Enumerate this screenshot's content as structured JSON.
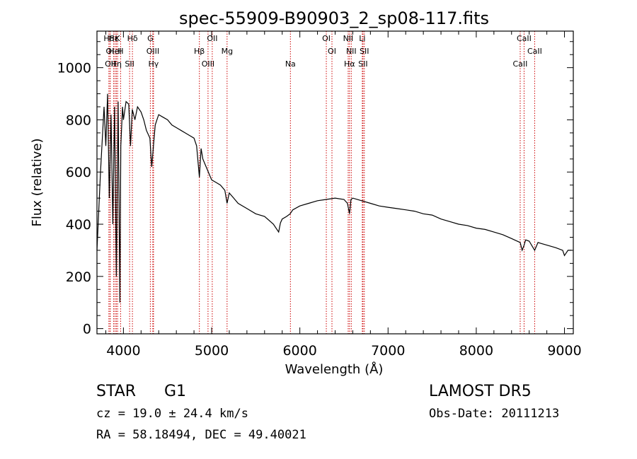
{
  "chart_data": {
    "type": "line",
    "title": "spec-55909-B90903_2_sp08-117.fits",
    "xlabel": "Wavelength (Å)",
    "ylabel": "Flux (relative)",
    "xlim": [
      3700,
      9100
    ],
    "ylim": [
      -20,
      1140
    ],
    "x_ticks": [
      4000,
      5000,
      6000,
      7000,
      8000,
      9000
    ],
    "y_ticks": [
      0,
      200,
      400,
      600,
      800,
      1000
    ],
    "grid": false,
    "line_color": "#000000",
    "marker_color": "#cc0000",
    "series": [
      {
        "x": [
          3700,
          3740,
          3780,
          3800,
          3820,
          3840,
          3860,
          3880,
          3900,
          3920,
          3940,
          3960,
          3970,
          3990,
          4000,
          4030,
          4060,
          4080,
          4100,
          4130,
          4160,
          4200,
          4230,
          4260,
          4300,
          4320,
          4340,
          4360,
          4380,
          4400,
          4450,
          4500,
          4550,
          4600,
          4650,
          4700,
          4750,
          4800,
          4830,
          4861,
          4880,
          4900,
          4950,
          5000,
          5050,
          5100,
          5150,
          5175,
          5200,
          5250,
          5300,
          5400,
          5500,
          5600,
          5700,
          5760,
          5780,
          5800,
          5850,
          5890,
          5920,
          6000,
          6100,
          6200,
          6300,
          6400,
          6500,
          6540,
          6563,
          6580,
          6600,
          6700,
          6800,
          6900,
          7000,
          7100,
          7200,
          7300,
          7400,
          7500,
          7600,
          7700,
          7800,
          7900,
          8000,
          8100,
          8200,
          8300,
          8400,
          8498,
          8520,
          8542,
          8560,
          8600,
          8662,
          8700,
          8800,
          8900,
          8980,
          9000,
          9040,
          9080
        ],
        "y": [
          300,
          600,
          850,
          700,
          900,
          500,
          820,
          400,
          850,
          200,
          870,
          100,
          700,
          850,
          800,
          870,
          860,
          700,
          840,
          800,
          850,
          830,
          800,
          760,
          730,
          620,
          700,
          780,
          800,
          820,
          810,
          800,
          780,
          770,
          760,
          750,
          740,
          730,
          700,
          580,
          690,
          650,
          610,
          570,
          560,
          550,
          530,
          480,
          520,
          500,
          480,
          460,
          440,
          430,
          400,
          370,
          405,
          420,
          430,
          440,
          455,
          470,
          480,
          490,
          495,
          500,
          495,
          480,
          440,
          495,
          500,
          490,
          480,
          470,
          465,
          460,
          455,
          450,
          440,
          435,
          420,
          410,
          400,
          395,
          385,
          380,
          370,
          360,
          345,
          330,
          300,
          320,
          340,
          335,
          300,
          330,
          320,
          310,
          300,
          280,
          300,
          300
        ]
      }
    ],
    "lines": [
      {
        "label": "Hδ",
        "x": 3835
      },
      {
        "label": "OI",
        "x": 3848
      },
      {
        "label": "OII",
        "x": 3850
      },
      {
        "label": "Hε",
        "x": 3889
      },
      {
        "label": "HeI",
        "x": 3905
      },
      {
        "label": "Hη",
        "x": 3920
      },
      {
        "label": "K",
        "x": 3934
      },
      {
        "label": "H",
        "x": 3968
      },
      {
        "label": "SII",
        "x": 4070
      },
      {
        "label": "Hδ",
        "x": 4102
      },
      {
        "label": "OIII",
        "x": 4333
      },
      {
        "label": "Hγ",
        "x": 4341
      },
      {
        "label": "G",
        "x": 4305
      },
      {
        "label": "Hβ",
        "x": 4861
      },
      {
        "label": "OIII",
        "x": 4959
      },
      {
        "label": "OII",
        "x": 5007
      },
      {
        "label": "Mg",
        "x": 5175
      },
      {
        "label": "Na",
        "x": 5893
      },
      {
        "label": "OI",
        "x": 6300
      },
      {
        "label": "OI",
        "x": 6364
      },
      {
        "label": "Hα",
        "x": 6563
      },
      {
        "label": "NII",
        "x": 6548
      },
      {
        "label": "NII",
        "x": 6583
      },
      {
        "label": "SII",
        "x": 6716
      },
      {
        "label": "Li",
        "x": 6708
      },
      {
        "label": "SII",
        "x": 6731
      },
      {
        "label": "CaII",
        "x": 8498
      },
      {
        "label": "CaII",
        "x": 8542
      },
      {
        "label": "CaII",
        "x": 8662
      }
    ]
  },
  "info": {
    "object_class": "STAR",
    "subclass": "G1",
    "cz_line": "cz = 19.0 ± 24.4 km/s",
    "coords_line": "RA =  58.18494, DEC =  49.40021",
    "survey": "LAMOST DR5",
    "obs_date": "Obs-Date: 20111213"
  }
}
